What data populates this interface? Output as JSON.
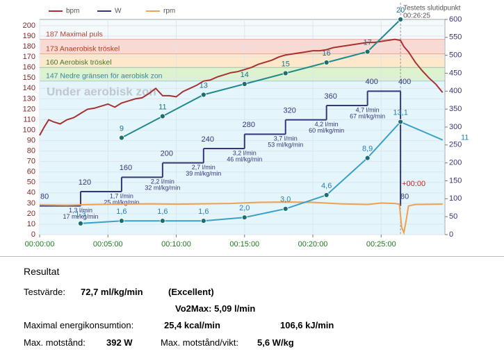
{
  "chart_data": {
    "type": "line",
    "xlim": [
      0,
      1780
    ],
    "xticks": [
      {
        "value": 0,
        "label": "00:00:00"
      },
      {
        "value": 300,
        "label": "00:05:00"
      },
      {
        "value": 600,
        "label": "00:10:00"
      },
      {
        "value": 900,
        "label": "00:15:00"
      },
      {
        "value": 1200,
        "label": "00:20:00"
      },
      {
        "value": 1500,
        "label": "00:25:00"
      }
    ],
    "ylim": [
      0,
      206
    ],
    "yticks": [
      0,
      10,
      20,
      30,
      40,
      50,
      60,
      70,
      80,
      90,
      100,
      110,
      120,
      130,
      140,
      150,
      160,
      170,
      180,
      190,
      200
    ],
    "y2lim": [
      0,
      600
    ],
    "y2ticks": [
      0,
      50,
      100,
      150,
      200,
      250,
      300,
      350,
      400,
      450,
      500,
      550,
      600
    ],
    "y3lim": [
      0,
      20
    ],
    "y4lim": [
      0,
      25
    ],
    "grid": true,
    "zones": [
      {
        "value": 187,
        "label": "187 Maximal puls",
        "color": "#fbd9d3",
        "text_color": "#c03a2a"
      },
      {
        "value": 173,
        "label": "173 Anaerobisk tröskel",
        "color": "#fde8cc",
        "text_color": "#b0401a"
      },
      {
        "value": 160,
        "label": "160 Aerobisk tröskel",
        "color": "#ddf2cf",
        "text_color": "#3f7a2a"
      },
      {
        "value": 147,
        "label": "147 Nedre gränsen för aerobisk zon",
        "color": "#e4f5fb",
        "text_color": "#2f85a8"
      }
    ],
    "lower_zone_label": "Under aerobisk zon",
    "end_marker": {
      "x": 1585,
      "label": "Testets slutidpunkt",
      "time": "00:26:25",
      "offset": "+00:00"
    },
    "series": [
      {
        "name": "bpm",
        "color": "#a83030",
        "axis": "y",
        "style": "line",
        "x": [
          0,
          20,
          40,
          60,
          90,
          120,
          150,
          180,
          210,
          240,
          270,
          300,
          330,
          360,
          390,
          420,
          450,
          480,
          510,
          540,
          570,
          600,
          630,
          660,
          690,
          720,
          750,
          780,
          810,
          840,
          870,
          900,
          930,
          960,
          990,
          1020,
          1050,
          1080,
          1110,
          1140,
          1170,
          1200,
          1230,
          1260,
          1290,
          1320,
          1350,
          1380,
          1410,
          1440,
          1470,
          1500,
          1530,
          1560,
          1585,
          1600,
          1620,
          1650,
          1680,
          1710,
          1740,
          1770
        ],
        "values": [
          95,
          103,
          110,
          108,
          106,
          110,
          112,
          116,
          120,
          121,
          123,
          125,
          122,
          126,
          128,
          130,
          131,
          135,
          140,
          133,
          133,
          132,
          137,
          140,
          143,
          147,
          148,
          151,
          153,
          155,
          156,
          158,
          160,
          163,
          165,
          167,
          170,
          172,
          173,
          174,
          175,
          176,
          176,
          177,
          179,
          180,
          181,
          182,
          183,
          184,
          184,
          185,
          186,
          187,
          186,
          180,
          175,
          165,
          157,
          150,
          144,
          136
        ]
      },
      {
        "name": "W",
        "color": "#35357a",
        "axis": "y2",
        "style": "step",
        "x": [
          0,
          180,
          360,
          540,
          720,
          900,
          1080,
          1260,
          1440,
          1585,
          1585
        ],
        "values": [
          80,
          120,
          160,
          200,
          240,
          280,
          320,
          360,
          400,
          400,
          80
        ]
      },
      {
        "name": "rpm",
        "color": "#f0a050",
        "axis": "y2",
        "style": "line",
        "x": [
          0,
          120,
          240,
          360,
          480,
          600,
          720,
          840,
          960,
          1080,
          1200,
          1320,
          1440,
          1500,
          1560,
          1580,
          1590,
          1600,
          1610,
          1620,
          1650,
          1770
        ],
        "values": [
          83,
          82,
          84,
          85,
          86,
          85,
          86,
          87,
          90,
          91,
          90,
          86,
          84,
          88,
          87,
          85,
          20,
          5,
          40,
          80,
          84,
          85
        ]
      },
      {
        "color": "#1f8a8a",
        "label_color": "#1f6f86",
        "axis": "y3",
        "style": "markers",
        "x": [
          360,
          540,
          720,
          900,
          1080,
          1260,
          1440,
          1585
        ],
        "values": [
          9,
          11,
          13,
          14,
          15,
          16,
          17,
          20
        ]
      },
      {
        "color": "#3aa0c8",
        "label_color": "#2a80b0",
        "axis": "y4",
        "style": "markers",
        "x": [
          180,
          360,
          540,
          720,
          900,
          1080,
          1260,
          1440,
          1585,
          1770
        ],
        "values": [
          1.3,
          1.6,
          1.6,
          1.6,
          2.0,
          3.0,
          4.6,
          8.9,
          13.1,
          11
        ],
        "value_labels": [
          "1,3",
          "1,6",
          "1,6",
          "1,6",
          "2,0",
          "3,0",
          "4,6",
          "8,9",
          "13,1",
          "11"
        ]
      }
    ],
    "stage_notes": [
      {
        "x": 180,
        "text": [
          "1,3 l/min",
          "17 ml/kg/min"
        ]
      },
      {
        "x": 360,
        "text": [
          "1,7 l/min",
          "25 ml/kg/min"
        ]
      },
      {
        "x": 540,
        "text": [
          "2,2 l/min",
          "32 ml/kg/min"
        ]
      },
      {
        "x": 720,
        "text": [
          "2,7 l/min",
          "39 ml/kg/min"
        ]
      },
      {
        "x": 900,
        "text": [
          "3,2 l/min",
          "46 ml/kg/min"
        ]
      },
      {
        "x": 1080,
        "text": [
          "3,7 l/min",
          "53 ml/kg/min"
        ]
      },
      {
        "x": 1260,
        "text": [
          "4,2 l/min",
          "60 ml/kg/min"
        ]
      },
      {
        "x": 1440,
        "text": [
          "4,7 l/min",
          "67 ml/kg/min"
        ]
      }
    ]
  },
  "results": {
    "title": "Resultat",
    "test_label": "Testvärde:",
    "test_value": "72,7 ml/kg/min",
    "rating": "(Excellent)",
    "vo2max": "Vo2Max: 5,09 l/min",
    "energy_label": "Maximal energikonsumtion:",
    "energy_kcal": "25,4 kcal/min",
    "energy_kj": "106,6 kJ/min",
    "resistance_label": "Max. motstånd:",
    "resistance": "392 W",
    "resistance_weight_label": "Max. motstånd/vikt:",
    "resistance_weight": "5,6 W/kg"
  }
}
